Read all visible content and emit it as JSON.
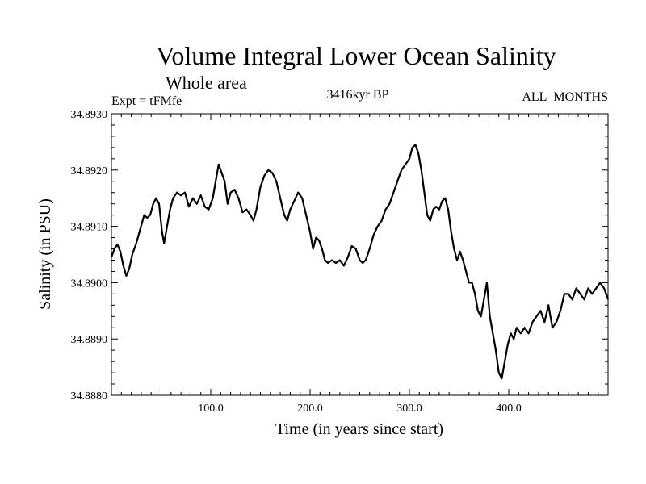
{
  "chart_data": {
    "type": "line",
    "title": "Volume Integral Lower Ocean Salinity",
    "subtitle": "Whole area",
    "experiment_label": "Expt = tFMfe",
    "period_label": "3416kyr BP",
    "months_label": "ALL_MONTHS",
    "xlabel": "Time (in years since start)",
    "ylabel": "Salinity (in PSU)",
    "xlim": [
      0,
      500
    ],
    "ylim": [
      34.888,
      34.893
    ],
    "x_ticks": [
      {
        "value": 100,
        "label": "100.0"
      },
      {
        "value": 200,
        "label": "200.0"
      },
      {
        "value": 300,
        "label": "300.0"
      },
      {
        "value": 400,
        "label": "400.0"
      }
    ],
    "y_ticks": [
      {
        "value": 34.888,
        "label": "34.8880"
      },
      {
        "value": 34.889,
        "label": "34.8890"
      },
      {
        "value": 34.89,
        "label": "34.8900"
      },
      {
        "value": 34.891,
        "label": "34.8910"
      },
      {
        "value": 34.892,
        "label": "34.8920"
      },
      {
        "value": 34.893,
        "label": "34.8930"
      }
    ],
    "grid": false,
    "series": [
      {
        "name": "salinity",
        "points": [
          [
            0,
            34.89045
          ],
          [
            3,
            34.8906
          ],
          [
            6,
            34.89068
          ],
          [
            9,
            34.89055
          ],
          [
            12,
            34.8903
          ],
          [
            15,
            34.89012
          ],
          [
            18,
            34.89025
          ],
          [
            21,
            34.8905
          ],
          [
            25,
            34.8907
          ],
          [
            29,
            34.89095
          ],
          [
            33,
            34.8912
          ],
          [
            36,
            34.89115
          ],
          [
            39,
            34.8912
          ],
          [
            42,
            34.8914
          ],
          [
            45,
            34.8915
          ],
          [
            48,
            34.8914
          ],
          [
            51,
            34.8909
          ],
          [
            53,
            34.8907
          ],
          [
            56,
            34.891
          ],
          [
            59,
            34.8913
          ],
          [
            62,
            34.8915
          ],
          [
            66,
            34.8916
          ],
          [
            70,
            34.89155
          ],
          [
            74,
            34.8916
          ],
          [
            78,
            34.89135
          ],
          [
            82,
            34.8915
          ],
          [
            86,
            34.8914
          ],
          [
            90,
            34.89155
          ],
          [
            94,
            34.89135
          ],
          [
            98,
            34.8913
          ],
          [
            102,
            34.8915
          ],
          [
            105,
            34.8918
          ],
          [
            108,
            34.8921
          ],
          [
            111,
            34.89195
          ],
          [
            114,
            34.8918
          ],
          [
            117,
            34.8914
          ],
          [
            120,
            34.8916
          ],
          [
            124,
            34.89165
          ],
          [
            128,
            34.8915
          ],
          [
            132,
            34.89125
          ],
          [
            136,
            34.8913
          ],
          [
            140,
            34.8912
          ],
          [
            143,
            34.8911
          ],
          [
            146,
            34.8913
          ],
          [
            150,
            34.8917
          ],
          [
            154,
            34.8919
          ],
          [
            158,
            34.892
          ],
          [
            162,
            34.89195
          ],
          [
            166,
            34.8918
          ],
          [
            170,
            34.8915
          ],
          [
            174,
            34.8912
          ],
          [
            177,
            34.8911
          ],
          [
            180,
            34.8913
          ],
          [
            184,
            34.89145
          ],
          [
            188,
            34.8916
          ],
          [
            192,
            34.8915
          ],
          [
            196,
            34.8912
          ],
          [
            200,
            34.8909
          ],
          [
            203,
            34.8906
          ],
          [
            206,
            34.8908
          ],
          [
            209,
            34.89075
          ],
          [
            212,
            34.8906
          ],
          [
            215,
            34.8904
          ],
          [
            218,
            34.89035
          ],
          [
            222,
            34.8904
          ],
          [
            226,
            34.89035
          ],
          [
            230,
            34.8904
          ],
          [
            234,
            34.8903
          ],
          [
            238,
            34.89045
          ],
          [
            242,
            34.89065
          ],
          [
            246,
            34.8906
          ],
          [
            250,
            34.8904
          ],
          [
            253,
            34.89035
          ],
          [
            256,
            34.8904
          ],
          [
            260,
            34.8906
          ],
          [
            264,
            34.89085
          ],
          [
            268,
            34.891
          ],
          [
            272,
            34.8911
          ],
          [
            276,
            34.8913
          ],
          [
            280,
            34.8914
          ],
          [
            284,
            34.8916
          ],
          [
            288,
            34.8918
          ],
          [
            292,
            34.892
          ],
          [
            296,
            34.8921
          ],
          [
            300,
            34.8922
          ],
          [
            303,
            34.8924
          ],
          [
            306,
            34.89245
          ],
          [
            309,
            34.8923
          ],
          [
            312,
            34.892
          ],
          [
            315,
            34.8916
          ],
          [
            318,
            34.8912
          ],
          [
            321,
            34.8911
          ],
          [
            324,
            34.8913
          ],
          [
            327,
            34.89135
          ],
          [
            330,
            34.8913
          ],
          [
            333,
            34.89145
          ],
          [
            336,
            34.8915
          ],
          [
            339,
            34.8913
          ],
          [
            342,
            34.8909
          ],
          [
            345,
            34.8906
          ],
          [
            348,
            34.8904
          ],
          [
            351,
            34.89055
          ],
          [
            354,
            34.8904
          ],
          [
            357,
            34.8902
          ],
          [
            360,
            34.89
          ],
          [
            363,
            34.89
          ],
          [
            366,
            34.8898
          ],
          [
            369,
            34.8895
          ],
          [
            372,
            34.8894
          ],
          [
            375,
            34.8897
          ],
          [
            378,
            34.89
          ],
          [
            381,
            34.8894
          ],
          [
            384,
            34.8891
          ],
          [
            387,
            34.8888
          ],
          [
            390,
            34.8884
          ],
          [
            393,
            34.8883
          ],
          [
            396,
            34.8886
          ],
          [
            399,
            34.8889
          ],
          [
            402,
            34.8891
          ],
          [
            405,
            34.889
          ],
          [
            408,
            34.8892
          ],
          [
            412,
            34.8891
          ],
          [
            416,
            34.8892
          ],
          [
            420,
            34.8891
          ],
          [
            424,
            34.8893
          ],
          [
            428,
            34.8894
          ],
          [
            432,
            34.8895
          ],
          [
            436,
            34.8893
          ],
          [
            440,
            34.8896
          ],
          [
            444,
            34.8892
          ],
          [
            448,
            34.8893
          ],
          [
            452,
            34.8895
          ],
          [
            456,
            34.8898
          ],
          [
            460,
            34.8898
          ],
          [
            464,
            34.8897
          ],
          [
            468,
            34.8899
          ],
          [
            472,
            34.8898
          ],
          [
            476,
            34.8897
          ],
          [
            480,
            34.8899
          ],
          [
            484,
            34.8898
          ],
          [
            488,
            34.8899
          ],
          [
            492,
            34.89
          ],
          [
            496,
            34.8899
          ],
          [
            500,
            34.8897
          ]
        ]
      }
    ]
  }
}
